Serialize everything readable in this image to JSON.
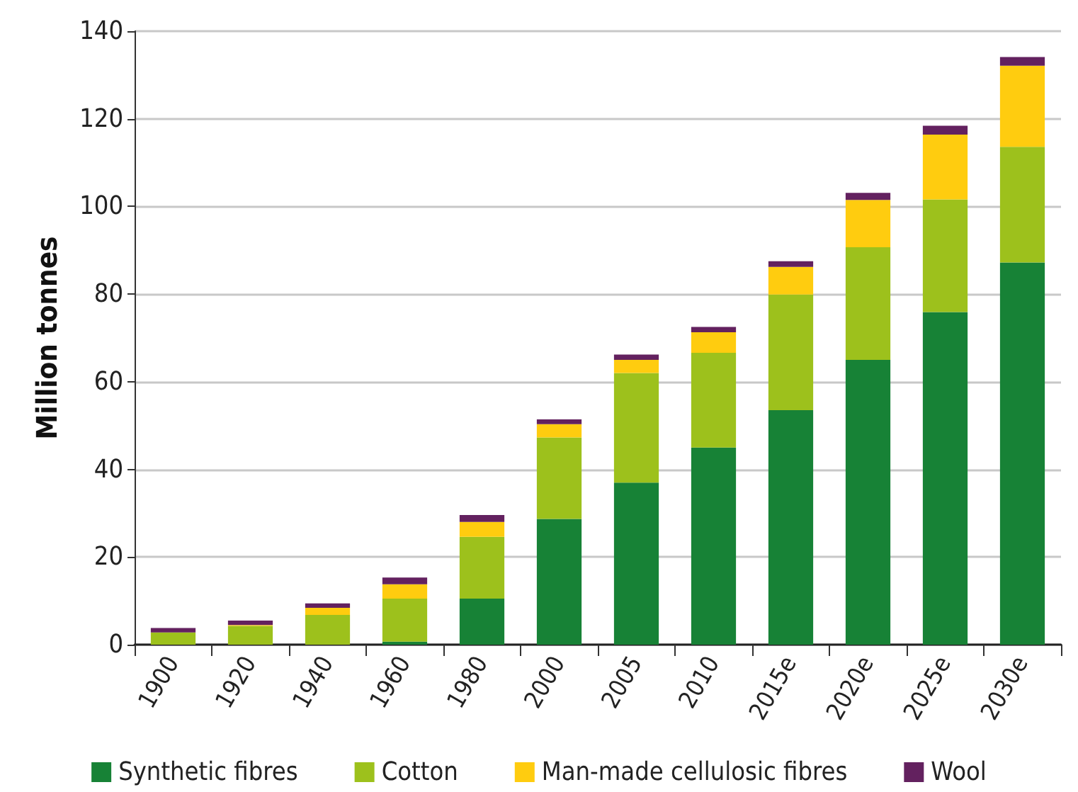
{
  "chart_data": {
    "type": "bar",
    "stacked": true,
    "ylabel": "Million tonnes",
    "categories": [
      "1900",
      "1920",
      "1940",
      "1960",
      "1980",
      "2000",
      "2005",
      "2010",
      "2015e",
      "2020e",
      "2025e",
      "2030e"
    ],
    "series": [
      {
        "name": "Synthetic fibres",
        "color": "#178236",
        "values": [
          0,
          0,
          0,
          0.7,
          10.5,
          28.7,
          37,
          45,
          53.5,
          65,
          75.9,
          87.2
        ]
      },
      {
        "name": "Cotton",
        "color": "#9dc11c",
        "values": [
          2.8,
          4.3,
          6.8,
          9.8,
          14.1,
          18.6,
          25,
          21.6,
          26.4,
          25.7,
          25.7,
          26.4
        ]
      },
      {
        "name": "Man-made cellulosic fibres",
        "color": "#ffcc0f",
        "values": [
          0,
          0.2,
          1.6,
          3.3,
          3.4,
          3,
          3,
          4.7,
          6.3,
          10.8,
          14.8,
          18.5
        ]
      },
      {
        "name": "Wool",
        "color": "#63215f",
        "values": [
          1,
          1,
          1,
          1.5,
          1.6,
          1.1,
          1.2,
          1.2,
          1.3,
          1.6,
          2,
          2
        ]
      }
    ],
    "ylim": [
      0,
      140
    ],
    "yticks": [
      0,
      20,
      40,
      60,
      80,
      100,
      120,
      140
    ],
    "grid": "y",
    "legend": "bottom"
  }
}
